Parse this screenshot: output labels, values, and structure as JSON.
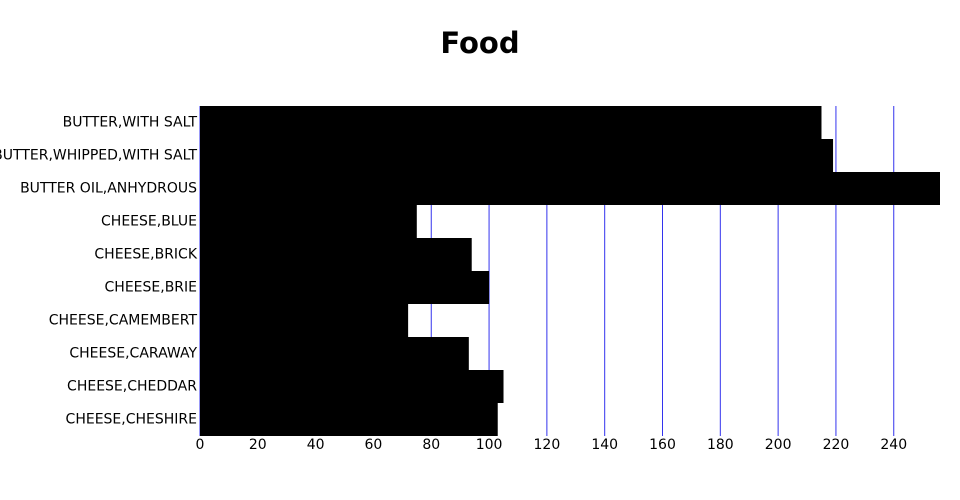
{
  "chart_data": {
    "type": "bar",
    "orientation": "horizontal",
    "title": "Food",
    "categories": [
      "BUTTER,WITH SALT",
      "BUTTER,WHIPPED,WITH SALT",
      "BUTTER OIL,ANHYDROUS",
      "CHEESE,BLUE",
      "CHEESE,BRICK",
      "CHEESE,BRIE",
      "CHEESE,CAMEMBERT",
      "CHEESE,CARAWAY",
      "CHEESE,CHEDDAR",
      "CHEESE,CHESHIRE"
    ],
    "values": [
      215,
      219,
      256,
      75,
      94,
      100,
      72,
      93,
      105,
      103
    ],
    "color": "#000000",
    "grid_color": "#3333ee",
    "xlim": [
      0,
      256
    ],
    "xticks": [
      0,
      20,
      40,
      60,
      80,
      100,
      120,
      140,
      160,
      180,
      200,
      220,
      240
    ],
    "grid": true
  }
}
